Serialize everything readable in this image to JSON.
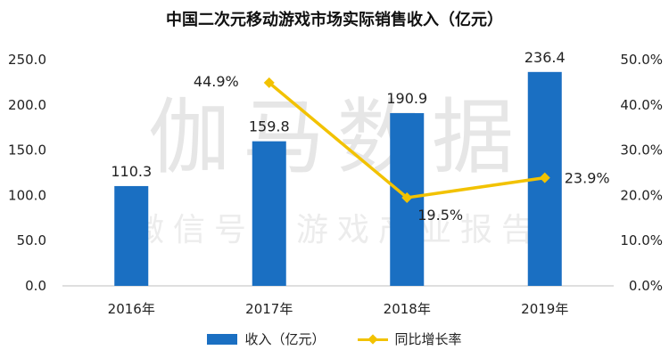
{
  "chart_data": {
    "type": "bar+line",
    "title": "中国二次元移动游戏市场实际销售收入（亿元）",
    "categories": [
      "2016年",
      "2017年",
      "2018年",
      "2019年"
    ],
    "series": [
      {
        "name": "收入（亿元）",
        "type": "bar",
        "axis": "left",
        "values": [
          110.3,
          159.8,
          190.9,
          236.4
        ],
        "labels": [
          "110.3",
          "159.8",
          "190.9",
          "236.4"
        ],
        "color": "#1a6fc2"
      },
      {
        "name": "同比增长率",
        "type": "line",
        "axis": "right",
        "x": [
          "2017年",
          "2018年",
          "2019年"
        ],
        "values": [
          44.9,
          19.5,
          23.9
        ],
        "labels": [
          "44.9%",
          "19.5%",
          "23.9%"
        ],
        "color": "#f2c200"
      }
    ],
    "y_left": {
      "min": 0,
      "max": 250,
      "step": 50,
      "tick_labels": [
        "0.0",
        "50.0",
        "100.0",
        "150.0",
        "200.0",
        "250.0"
      ]
    },
    "y_right": {
      "min": 0,
      "max": 50,
      "step": 10,
      "tick_labels": [
        "0.0%",
        "10.0%",
        "20.0%",
        "30.0%",
        "40.0%",
        "50.0%"
      ]
    },
    "grid": false,
    "legend_position": "bottom",
    "watermark": [
      "伽马数据",
      "微信号：游戏产业报告"
    ]
  }
}
